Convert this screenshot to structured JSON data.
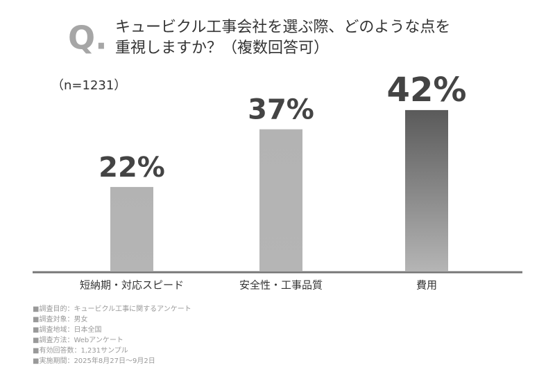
{
  "chart_data": {
    "type": "bar",
    "q_mark": "Q.",
    "title": [
      "キュービクル工事会社を選ぶ際、どのような点を",
      "重視しますか？（複数回答可）"
    ],
    "sample_size": "（n=1231）",
    "categories": [
      "短納期・対応スピード",
      "安全性・工事品質",
      "費用"
    ],
    "values": [
      22,
      37,
      42
    ],
    "value_labels": [
      "22%",
      "37%",
      "42%"
    ],
    "colors": [
      "#b3b3b3",
      "#b3b3b3",
      "#5a5a5a"
    ],
    "notes": [
      "■調査目的：キュービクル工事に関するアンケート",
      "■調査対象：男女",
      "■調査地域：日本全国",
      "■調査方法：Webアンケート",
      "■有効回答数：1,231サンプル",
      "■実施期間：2025年8月27日～9月2日"
    ]
  }
}
